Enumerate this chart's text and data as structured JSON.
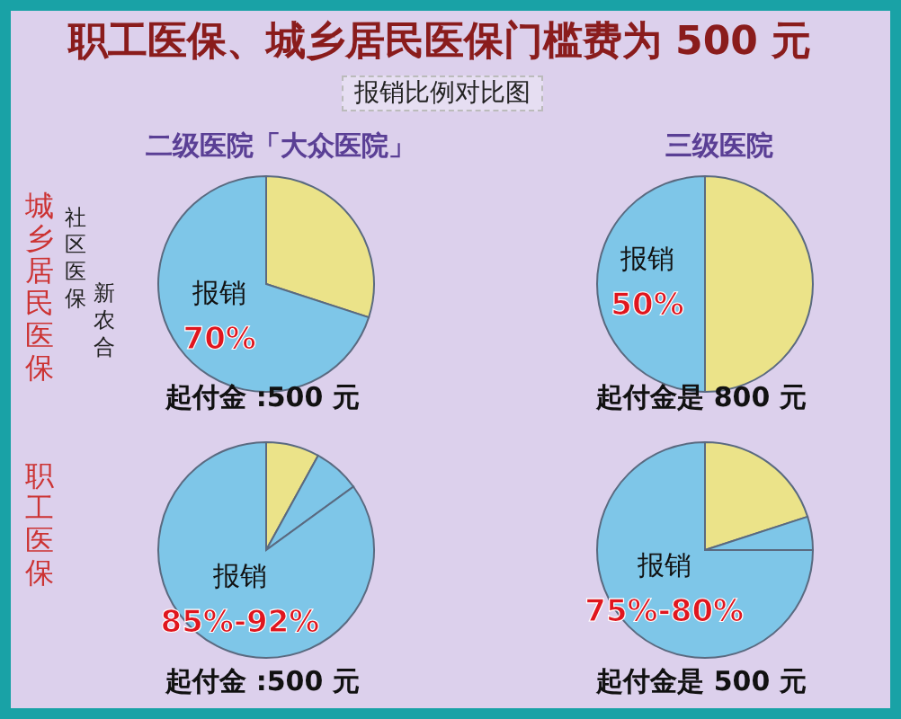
{
  "chart_data": [
    {
      "type": "pie",
      "title": "职工医保、城乡居民医保门槛费为 500 元",
      "subtitle": "报销比例对比图",
      "annotations": [
        "二级医院「大众医院」",
        "社区医保",
        "新农合"
      ],
      "ylabel": "城乡居民医保",
      "xlabel": "起付金 :500 元",
      "categories": [
        null,
        "报销"
      ],
      "values": [
        30,
        70
      ],
      "colors": [
        "#ebe389",
        "#7ec6e8"
      ],
      "value_labels": [
        null,
        "70%"
      ]
    },
    {
      "type": "pie",
      "annotations": [
        "三级医院"
      ],
      "xlabel": "起付金是 800 元",
      "categories": [
        null,
        "报销"
      ],
      "values": [
        50,
        50
      ],
      "colors": [
        "#ebe389",
        "#7ec6e8"
      ],
      "value_labels": [
        null,
        "50%"
      ]
    },
    {
      "type": "pie",
      "ylabel": "职工医保",
      "xlabel": "起付金 :500 元",
      "categories": [
        null,
        null,
        "报销"
      ],
      "values": [
        8,
        7,
        85
      ],
      "colors": [
        "#ebe389",
        "#7ec6e8",
        "#7ec6e8"
      ],
      "value_labels": [
        null,
        null,
        "85%-92%"
      ]
    },
    {
      "type": "pie",
      "xlabel": "起付金是 500 元",
      "categories": [
        null,
        null,
        "报销"
      ],
      "values": [
        20,
        5,
        75
      ],
      "colors": [
        "#ebe389",
        "#7ec6e8",
        "#7ec6e8"
      ],
      "value_labels": [
        null,
        null,
        "75%-80%"
      ]
    }
  ]
}
